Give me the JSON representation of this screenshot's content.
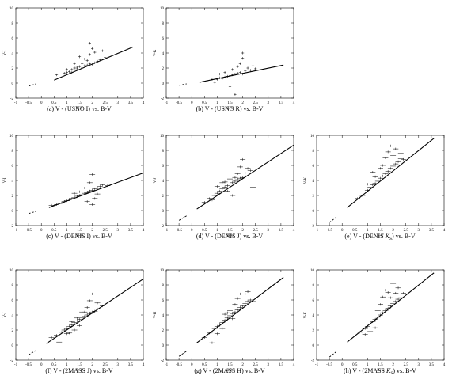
{
  "chart_data": [
    {
      "type": "scatter",
      "caption": "(a) V - (USNO I) vs. B-V",
      "xlabel": "B-V",
      "ylabel": "V-I",
      "xlim": [
        -1,
        4
      ],
      "ylim": [
        -2,
        10
      ],
      "xticks": [
        "-1",
        "-0.5",
        "0",
        "0.5",
        "1",
        "1.5",
        "2",
        "2.5",
        "3",
        "3.5",
        "4"
      ],
      "yticks": [
        "-2",
        "0",
        "2",
        "4",
        "6",
        "8",
        "10"
      ],
      "fit_line": {
        "x": [
          0.5,
          3.6
        ],
        "y": [
          0.4,
          4.8
        ]
      },
      "dashed_line": {
        "x": [
          -0.5,
          -0.2
        ],
        "y": [
          -0.4,
          -0.1
        ]
      },
      "points": [
        [
          0.6,
          1.1
        ],
        [
          0.9,
          1.3
        ],
        [
          1.0,
          1.4
        ],
        [
          1.1,
          1.5
        ],
        [
          1.2,
          1.8
        ],
        [
          1.3,
          2.0
        ],
        [
          1.4,
          1.9
        ],
        [
          1.5,
          2.2
        ],
        [
          1.6,
          2.0
        ],
        [
          1.7,
          2.3
        ],
        [
          1.8,
          2.4
        ],
        [
          1.9,
          2.6
        ],
        [
          2.0,
          2.5
        ],
        [
          2.1,
          2.7
        ],
        [
          1.2,
          1.4
        ],
        [
          1.4,
          2.1
        ],
        [
          1.6,
          2.6
        ],
        [
          1.7,
          3.2
        ],
        [
          1.8,
          3.0
        ],
        [
          1.9,
          3.8
        ],
        [
          2.0,
          4.6
        ],
        [
          1.9,
          5.3
        ],
        [
          2.1,
          4.1
        ],
        [
          2.2,
          2.9
        ],
        [
          2.4,
          4.3
        ],
        [
          2.5,
          3.4
        ],
        [
          1.5,
          3.5
        ],
        [
          1.3,
          2.6
        ],
        [
          1.0,
          1.8
        ],
        [
          2.3,
          3.1
        ]
      ],
      "errors": false
    },
    {
      "type": "scatter",
      "caption": "(b) V - (USNO R) vs. B-V",
      "xlabel": "B-V",
      "ylabel": "V-R",
      "xlim": [
        -1,
        4
      ],
      "ylim": [
        -2,
        10
      ],
      "xticks": [
        "-1",
        "-0.5",
        "0",
        "0.5",
        "1",
        "1.5",
        "2",
        "2.5",
        "3",
        "3.5",
        "4"
      ],
      "yticks": [
        "-2",
        "0",
        "2",
        "4",
        "6",
        "8",
        "10"
      ],
      "fit_line": {
        "x": [
          0.3,
          3.6
        ],
        "y": [
          0.1,
          2.4
        ]
      },
      "dashed_line": {
        "x": [
          -0.5,
          -0.2
        ],
        "y": [
          -0.3,
          -0.1
        ]
      },
      "points": [
        [
          0.6,
          0.3
        ],
        [
          0.8,
          0.5
        ],
        [
          1.0,
          0.5
        ],
        [
          1.1,
          0.7
        ],
        [
          1.2,
          0.6
        ],
        [
          1.3,
          0.8
        ],
        [
          1.4,
          0.9
        ],
        [
          1.5,
          1.0
        ],
        [
          1.6,
          1.1
        ],
        [
          1.7,
          1.2
        ],
        [
          1.8,
          1.3
        ],
        [
          1.9,
          1.4
        ],
        [
          2.0,
          1.2
        ],
        [
          2.1,
          1.6
        ],
        [
          0.9,
          0.1
        ],
        [
          1.3,
          1.4
        ],
        [
          1.6,
          1.8
        ],
        [
          1.8,
          2.2
        ],
        [
          1.9,
          2.6
        ],
        [
          2.0,
          3.3
        ],
        [
          2.0,
          4.0
        ],
        [
          2.2,
          2.0
        ],
        [
          2.3,
          1.7
        ],
        [
          2.5,
          1.9
        ],
        [
          1.5,
          -0.5
        ],
        [
          1.7,
          -1.5
        ],
        [
          1.1,
          1.2
        ],
        [
          2.4,
          2.3
        ]
      ],
      "errors": false
    },
    {
      "type": "scatter",
      "caption": "(c) V - (DENIS I) vs. B-V",
      "xlabel": "B-V",
      "ylabel": "V-I",
      "xlim": [
        -1,
        4
      ],
      "ylim": [
        -2,
        10
      ],
      "xticks": [
        "-1",
        "-0.5",
        "0",
        "0.5",
        "1",
        "1.5",
        "2",
        "2.5",
        "3",
        "3.5",
        "4"
      ],
      "yticks": [
        "-2",
        "0",
        "2",
        "4",
        "6",
        "8",
        "10"
      ],
      "fit_line": {
        "x": [
          0.3,
          4.0
        ],
        "y": [
          0.4,
          5.0
        ]
      },
      "dashed_line": {
        "x": [
          -0.5,
          -0.2
        ],
        "y": [
          -0.4,
          -0.1
        ]
      },
      "points": [
        [
          0.4,
          0.7
        ],
        [
          0.6,
          0.8
        ],
        [
          0.8,
          1.0
        ],
        [
          0.9,
          1.2
        ],
        [
          1.0,
          1.3
        ],
        [
          1.1,
          1.5
        ],
        [
          1.2,
          1.6
        ],
        [
          1.3,
          1.7
        ],
        [
          1.4,
          1.9
        ],
        [
          1.5,
          2.0
        ],
        [
          1.6,
          2.1
        ],
        [
          1.7,
          2.3
        ],
        [
          1.8,
          2.4
        ],
        [
          1.9,
          2.6
        ],
        [
          2.0,
          2.7
        ],
        [
          2.1,
          2.9
        ],
        [
          2.2,
          3.0
        ],
        [
          2.3,
          3.2
        ],
        [
          2.4,
          3.4
        ],
        [
          2.6,
          3.3
        ],
        [
          1.5,
          2.5
        ],
        [
          1.7,
          3.0
        ],
        [
          1.9,
          3.7
        ],
        [
          2.0,
          4.8
        ],
        [
          1.8,
          1.2
        ],
        [
          2.0,
          0.8
        ],
        [
          2.1,
          1.6
        ],
        [
          1.3,
          2.3
        ],
        [
          1.6,
          1.5
        ],
        [
          2.2,
          2.2
        ]
      ],
      "errors": true
    },
    {
      "type": "scatter",
      "caption": "(d) V - (DENIS J) vs. B-V",
      "xlabel": "B-V",
      "ylabel": "V-J",
      "xlim": [
        -1,
        4
      ],
      "ylim": [
        -2,
        10
      ],
      "xticks": [
        "-1",
        "-0.5",
        "0",
        "0.5",
        "1",
        "1.5",
        "2",
        "2.5",
        "3",
        "3.5",
        "4"
      ],
      "yticks": [
        "-2",
        "0",
        "2",
        "4",
        "6",
        "8",
        "10"
      ],
      "fit_line": {
        "x": [
          0.2,
          4.0
        ],
        "y": [
          0.2,
          8.7
        ]
      },
      "dashed_line": {
        "x": [
          -0.5,
          -0.2
        ],
        "y": [
          -1.3,
          -0.7
        ]
      },
      "points": [
        [
          0.5,
          1.1
        ],
        [
          0.7,
          1.6
        ],
        [
          0.9,
          2.0
        ],
        [
          1.0,
          2.3
        ],
        [
          1.1,
          2.6
        ],
        [
          1.2,
          2.9
        ],
        [
          1.3,
          3.1
        ],
        [
          1.4,
          3.3
        ],
        [
          1.5,
          3.5
        ],
        [
          1.6,
          3.7
        ],
        [
          1.7,
          3.9
        ],
        [
          1.8,
          4.1
        ],
        [
          1.9,
          4.3
        ],
        [
          2.0,
          4.4
        ],
        [
          2.1,
          4.6
        ],
        [
          1.2,
          3.7
        ],
        [
          1.4,
          2.6
        ],
        [
          1.6,
          2.0
        ],
        [
          1.8,
          4.9
        ],
        [
          1.9,
          5.8
        ],
        [
          2.0,
          6.8
        ],
        [
          2.2,
          5.6
        ],
        [
          2.3,
          5.3
        ],
        [
          2.4,
          3.1
        ],
        [
          1.0,
          3.2
        ],
        [
          1.5,
          4.2
        ],
        [
          1.7,
          4.4
        ],
        [
          2.1,
          5.0
        ],
        [
          1.3,
          3.8
        ],
        [
          0.8,
          1.4
        ]
      ],
      "errors": true
    },
    {
      "type": "scatter",
      "caption": "(e) V - (DENIS K_S) vs. B-V",
      "caption_prefix": "(e) V - (DENIS ",
      "caption_main": "K",
      "caption_sub": "S",
      "caption_suffix": ") vs. B-V",
      "xlabel": "B-V",
      "ylabel": "V-K",
      "xlim": [
        -1,
        4
      ],
      "ylim": [
        -2,
        10
      ],
      "xticks": [
        "-1",
        "-0.5",
        "0",
        "0.5",
        "1",
        "1.5",
        "2",
        "2.5",
        "3",
        "3.5",
        "4"
      ],
      "yticks": [
        "-2",
        "0",
        "2",
        "4",
        "6",
        "8",
        "10"
      ],
      "fit_line": {
        "x": [
          0.2,
          3.6
        ],
        "y": [
          0.4,
          9.6
        ]
      },
      "dashed_line": {
        "x": [
          -0.5,
          -0.2
        ],
        "y": [
          -1.6,
          -0.8
        ]
      },
      "points": [
        [
          0.6,
          1.6
        ],
        [
          0.8,
          2.0
        ],
        [
          1.0,
          2.7
        ],
        [
          1.1,
          3.1
        ],
        [
          1.2,
          3.4
        ],
        [
          1.3,
          3.6
        ],
        [
          1.4,
          3.9
        ],
        [
          1.5,
          4.3
        ],
        [
          1.6,
          4.6
        ],
        [
          1.7,
          4.9
        ],
        [
          1.8,
          5.2
        ],
        [
          1.9,
          5.6
        ],
        [
          2.0,
          5.9
        ],
        [
          2.1,
          6.2
        ],
        [
          2.2,
          6.5
        ],
        [
          2.3,
          6.9
        ],
        [
          2.4,
          6.8
        ],
        [
          1.6,
          6.0
        ],
        [
          1.7,
          7.0
        ],
        [
          1.8,
          7.8
        ],
        [
          1.9,
          8.6
        ],
        [
          2.0,
          7.3
        ],
        [
          2.1,
          8.2
        ],
        [
          2.3,
          7.6
        ],
        [
          1.5,
          5.6
        ],
        [
          1.3,
          4.5
        ],
        [
          1.2,
          5.1
        ],
        [
          1.0,
          3.5
        ]
      ],
      "errors": true
    },
    {
      "type": "scatter",
      "caption": "(f) V - (2MASS J) vs. B-V",
      "xlabel": "B-V",
      "ylabel": "V-J",
      "xlim": [
        -1,
        4
      ],
      "ylim": [
        -2,
        10
      ],
      "xticks": [
        "-1",
        "-0.5",
        "0",
        "0.5",
        "1",
        "1.5",
        "2",
        "2.5",
        "3",
        "3.5",
        "4"
      ],
      "yticks": [
        "-2",
        "0",
        "2",
        "4",
        "6",
        "8",
        "10"
      ],
      "fit_line": {
        "x": [
          0.2,
          4.0
        ],
        "y": [
          0.2,
          8.8
        ]
      },
      "dashed_line": {
        "x": [
          -0.5,
          -0.2
        ],
        "y": [
          -1.3,
          -0.7
        ]
      },
      "points": [
        [
          0.4,
          1.0
        ],
        [
          0.6,
          1.3
        ],
        [
          0.8,
          1.7
        ],
        [
          0.9,
          2.0
        ],
        [
          1.0,
          2.2
        ],
        [
          1.1,
          2.5
        ],
        [
          1.2,
          2.7
        ],
        [
          1.3,
          3.0
        ],
        [
          1.4,
          3.2
        ],
        [
          1.5,
          3.4
        ],
        [
          1.6,
          3.6
        ],
        [
          1.7,
          3.8
        ],
        [
          1.8,
          4.0
        ],
        [
          1.9,
          4.2
        ],
        [
          2.0,
          4.4
        ],
        [
          2.1,
          4.5
        ],
        [
          2.2,
          4.8
        ],
        [
          1.3,
          2.0
        ],
        [
          1.5,
          2.6
        ],
        [
          1.1,
          1.6
        ],
        [
          1.7,
          4.4
        ],
        [
          1.8,
          5.0
        ],
        [
          1.9,
          5.9
        ],
        [
          2.0,
          6.8
        ],
        [
          2.2,
          5.6
        ],
        [
          2.4,
          5.2
        ],
        [
          1.6,
          4.4
        ],
        [
          0.7,
          0.4
        ],
        [
          1.0,
          1.5
        ],
        [
          1.4,
          3.6
        ],
        [
          1.2,
          3.1
        ]
      ],
      "errors": true
    },
    {
      "type": "scatter",
      "caption": "(g) V - (2MASS H) vs. B-V",
      "xlabel": "B-V",
      "ylabel": "V-H",
      "xlim": [
        -1,
        4
      ],
      "ylim": [
        -2,
        10
      ],
      "xticks": [
        "-1",
        "-0.5",
        "0",
        "0.5",
        "1",
        "1.5",
        "2",
        "2.5",
        "3",
        "3.5",
        "4"
      ],
      "yticks": [
        "-2",
        "0",
        "2",
        "4",
        "6",
        "8",
        "10"
      ],
      "fit_line": {
        "x": [
          0.2,
          3.6
        ],
        "y": [
          0.3,
          9.0
        ]
      },
      "dashed_line": {
        "x": [
          -0.5,
          -0.2
        ],
        "y": [
          -1.5,
          -0.8
        ]
      },
      "points": [
        [
          0.5,
          1.0
        ],
        [
          0.7,
          1.6
        ],
        [
          0.9,
          2.2
        ],
        [
          1.0,
          2.5
        ],
        [
          1.1,
          2.8
        ],
        [
          1.2,
          3.0
        ],
        [
          1.3,
          3.3
        ],
        [
          1.4,
          3.6
        ],
        [
          1.5,
          3.9
        ],
        [
          1.6,
          4.2
        ],
        [
          1.7,
          4.4
        ],
        [
          1.8,
          4.7
        ],
        [
          1.9,
          5.0
        ],
        [
          2.0,
          5.2
        ],
        [
          2.1,
          5.5
        ],
        [
          2.2,
          5.8
        ],
        [
          2.3,
          6.0
        ],
        [
          1.3,
          4.1
        ],
        [
          1.5,
          4.6
        ],
        [
          1.7,
          5.4
        ],
        [
          1.8,
          6.2
        ],
        [
          1.9,
          6.8
        ],
        [
          2.1,
          6.8
        ],
        [
          2.2,
          7.1
        ],
        [
          1.2,
          2.2
        ],
        [
          1.0,
          1.5
        ],
        [
          0.8,
          0.3
        ],
        [
          2.4,
          5.8
        ],
        [
          1.6,
          3.5
        ],
        [
          1.4,
          4.3
        ]
      ],
      "errors": true
    },
    {
      "type": "scatter",
      "caption": "(h) V - (2MASS K_S) vs. B-V",
      "caption_prefix": "(h) V - (2MASS ",
      "caption_main": "K",
      "caption_sub": "S",
      "caption_suffix": ") vs. B-V",
      "xlabel": "B-V",
      "ylabel": "V-K",
      "xlim": [
        -1,
        4
      ],
      "ylim": [
        -2,
        10
      ],
      "xticks": [
        "-1",
        "-0.5",
        "0",
        "0.5",
        "1",
        "1.5",
        "2",
        "2.5",
        "3",
        "3.5",
        "4"
      ],
      "yticks": [
        "-2",
        "0",
        "2",
        "4",
        "6",
        "8",
        "10"
      ],
      "fit_line": {
        "x": [
          0.2,
          3.6
        ],
        "y": [
          0.4,
          9.6
        ]
      },
      "dashed_line": {
        "x": [
          -0.5,
          -0.2
        ],
        "y": [
          -1.6,
          -0.8
        ]
      },
      "points": [
        [
          0.5,
          1.2
        ],
        [
          0.7,
          1.7
        ],
        [
          0.9,
          2.2
        ],
        [
          1.0,
          2.5
        ],
        [
          1.1,
          2.8
        ],
        [
          1.2,
          3.1
        ],
        [
          1.3,
          3.4
        ],
        [
          1.4,
          3.7
        ],
        [
          1.5,
          4.0
        ],
        [
          1.6,
          4.3
        ],
        [
          1.7,
          4.6
        ],
        [
          1.8,
          4.9
        ],
        [
          1.9,
          5.2
        ],
        [
          2.0,
          5.5
        ],
        [
          2.1,
          5.8
        ],
        [
          2.2,
          6.1
        ],
        [
          2.3,
          6.3
        ],
        [
          1.5,
          5.4
        ],
        [
          1.6,
          6.4
        ],
        [
          1.7,
          7.3
        ],
        [
          1.8,
          7.0
        ],
        [
          1.9,
          6.3
        ],
        [
          2.0,
          8.2
        ],
        [
          2.1,
          6.9
        ],
        [
          2.2,
          7.6
        ],
        [
          1.3,
          2.3
        ],
        [
          1.1,
          1.8
        ],
        [
          0.9,
          1.4
        ],
        [
          2.4,
          6.9
        ],
        [
          1.4,
          4.6
        ]
      ],
      "errors": true
    }
  ]
}
